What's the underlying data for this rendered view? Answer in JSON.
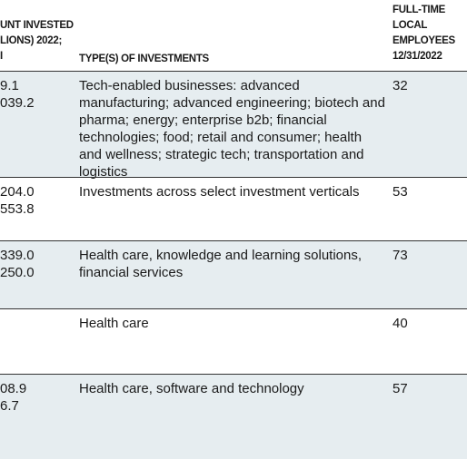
{
  "table": {
    "header": {
      "amount": [
        "UNT INVESTED",
        "LIONS) 2022;",
        "I"
      ],
      "types": "TYPE(S) OF INVESTMENTS",
      "employees": [
        "FULL-TIME",
        "LOCAL",
        "EMPLOYEES",
        "12/31/2022"
      ]
    },
    "rows": [
      {
        "amount": [
          "9.1",
          "039.2"
        ],
        "types": "Tech-enabled businesses: advanced manufacturing; advanced engineering; biotech and pharma; energy; enterprise b2b; financial technologies; food; retail and consumer; health and wellness; strategic tech; transportation and logistics",
        "employees": 32
      },
      {
        "amount": [
          "204.0",
          "553.8"
        ],
        "types": "Investments across select investment verticals",
        "employees": 53
      },
      {
        "amount": [
          "339.0",
          "250.0"
        ],
        "types": "Health care, knowledge and learning solutions, financial services",
        "employees": 73
      },
      {
        "amount": [],
        "types": "Health care",
        "employees": 40
      },
      {
        "amount": [
          "08.9",
          "6.7"
        ],
        "types": "Health care, software and technology",
        "employees": 57
      }
    ]
  }
}
